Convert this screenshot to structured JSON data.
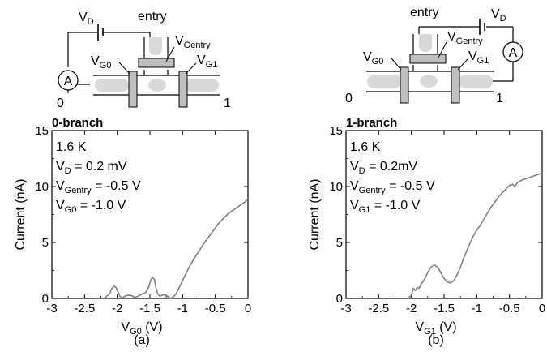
{
  "circuit": {
    "left": {
      "vd": "V",
      "vd_sub": "D",
      "entry": "entry",
      "ammeter": "A",
      "vg0": "V",
      "vg0_sub": "G0",
      "vgentry": "V",
      "vgentry_sub": "Gentry",
      "vg1": "V",
      "vg1_sub": "G1",
      "port0": "0",
      "port1": "1"
    },
    "right": {
      "vd": "V",
      "vd_sub": "D",
      "entry": "entry",
      "ammeter": "A",
      "vg0": "V",
      "vg0_sub": "G0",
      "vgentry": "V",
      "vgentry_sub": "Gentry",
      "vg1": "V",
      "vg1_sub": "G1",
      "port0": "0",
      "port1": "1"
    }
  },
  "chart_data": [
    {
      "type": "line",
      "title": "0-branch",
      "ylabel": "Current (nA)",
      "xlabel": {
        "main": "V",
        "sub": "G0",
        "unit": " (V)"
      },
      "caption": "(a)",
      "xlim": [
        -3,
        0
      ],
      "ylim": [
        0,
        15
      ],
      "xticks": [
        "-3",
        "-2.5",
        "-2",
        "-1.5",
        "-1",
        "-0.5",
        "0"
      ],
      "yticks": [
        "0",
        "5",
        "10",
        "15"
      ],
      "annotations": [
        {
          "text": "1.6 K"
        },
        {
          "main": "V",
          "sub": "D",
          "rest": " = 0.2 mV"
        },
        {
          "main": "V",
          "sub": "Gentry",
          "rest": " = -0.5 V"
        },
        {
          "main": "V",
          "sub": "G0",
          "rest": " = -1.0 V"
        }
      ],
      "series": [
        {
          "color": "#808080",
          "x": [
            -2.2,
            -2.12,
            -2.08,
            -2.05,
            -2.02,
            -1.99,
            -1.96,
            -1.92,
            -1.88,
            -1.83,
            -1.78,
            -1.73,
            -1.68,
            -1.62,
            -1.57,
            -1.52,
            -1.49,
            -1.46,
            -1.43,
            -1.41,
            -1.38,
            -1.35,
            -1.31,
            -1.27,
            -1.23,
            -1.19,
            -1.15,
            -1.1,
            -1.05,
            -1.0,
            -0.95,
            -0.9,
            -0.85,
            -0.8,
            -0.75,
            -0.7,
            -0.65,
            -0.6,
            -0.55,
            -0.5,
            -0.45,
            -0.4,
            -0.35,
            -0.3,
            -0.25,
            -0.2,
            -0.15,
            -0.1,
            -0.05,
            0.0
          ],
          "y": [
            0.0,
            0.4,
            0.9,
            1.1,
            1.0,
            0.6,
            0.2,
            0.05,
            0.2,
            0.3,
            0.25,
            0.1,
            0.2,
            0.4,
            0.5,
            1.0,
            1.6,
            1.9,
            1.7,
            1.0,
            0.4,
            0.2,
            0.3,
            0.35,
            0.2,
            0.0,
            0.1,
            0.4,
            1.0,
            1.6,
            2.2,
            2.8,
            3.3,
            3.8,
            4.2,
            4.7,
            5.1,
            5.5,
            5.9,
            6.3,
            6.7,
            7.0,
            7.3,
            7.6,
            7.8,
            8.0,
            8.2,
            8.4,
            8.6,
            8.9
          ]
        }
      ]
    },
    {
      "type": "line",
      "title": "1-branch",
      "ylabel": "Current (nA)",
      "xlabel": {
        "main": "V",
        "sub": "G1",
        "unit": " (V)"
      },
      "caption": "(b)",
      "xlim": [
        -3,
        0
      ],
      "ylim": [
        0,
        15
      ],
      "xticks": [
        "-3",
        "-2.5",
        "-2",
        "-1.5",
        "-1",
        "-0.5",
        "0"
      ],
      "yticks": [
        "0",
        "5",
        "10",
        "15"
      ],
      "annotations": [
        {
          "text": "1.6 K"
        },
        {
          "main": "V",
          "sub": "D",
          "rest": " = 0.2mV"
        },
        {
          "main": "V",
          "sub": "Gentry",
          "rest": " = -0.5 V"
        },
        {
          "main": "V",
          "sub": "G1",
          "rest": " = -1.0 V"
        }
      ],
      "series": [
        {
          "color": "#808080",
          "x": [
            -2.05,
            -2.0,
            -1.97,
            -1.94,
            -1.91,
            -1.88,
            -1.85,
            -1.8,
            -1.75,
            -1.7,
            -1.65,
            -1.6,
            -1.55,
            -1.5,
            -1.45,
            -1.4,
            -1.35,
            -1.3,
            -1.25,
            -1.2,
            -1.15,
            -1.1,
            -1.05,
            -1.0,
            -0.95,
            -0.9,
            -0.85,
            -0.8,
            -0.75,
            -0.7,
            -0.65,
            -0.6,
            -0.55,
            -0.5,
            -0.45,
            -0.42,
            -0.38,
            -0.3,
            -0.2,
            -0.1,
            0.0
          ],
          "y": [
            0.0,
            0.3,
            0.9,
            0.7,
            1.0,
            0.9,
            1.3,
            1.7,
            2.3,
            2.8,
            3.0,
            2.8,
            2.3,
            1.8,
            1.45,
            1.4,
            1.6,
            2.1,
            2.8,
            3.6,
            4.3,
            5.0,
            5.6,
            6.1,
            6.5,
            7.0,
            7.5,
            8.0,
            8.4,
            8.8,
            9.2,
            9.5,
            9.8,
            10.1,
            10.2,
            10.0,
            10.35,
            10.6,
            10.8,
            11.0,
            11.2
          ]
        }
      ]
    }
  ]
}
